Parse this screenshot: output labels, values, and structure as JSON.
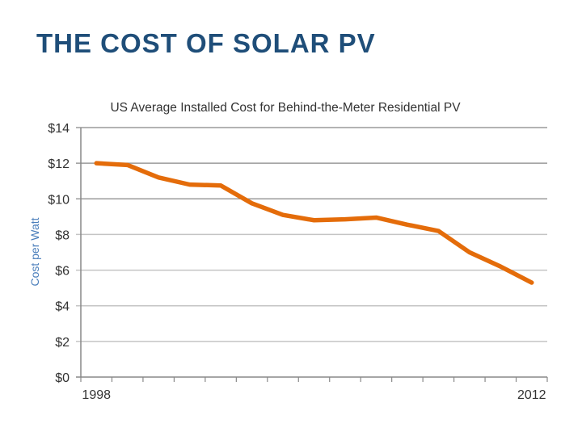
{
  "slide": {
    "title": "THE COST OF SOLAR PV"
  },
  "chart_data": {
    "type": "line",
    "title": "US Average Installed Cost for Behind-the-Meter Residential PV",
    "xlabel": "",
    "ylabel": "Cost per Watt",
    "x": [
      1998,
      1999,
      2000,
      2001,
      2002,
      2003,
      2004,
      2005,
      2006,
      2007,
      2008,
      2009,
      2010,
      2011,
      2012
    ],
    "x_tick_labels": [
      "1998",
      "2012"
    ],
    "y_tick_labels": [
      "$0",
      "$2",
      "$4",
      "$6",
      "$8",
      "$10",
      "$12",
      "$14"
    ],
    "ylim": [
      0,
      14
    ],
    "grid": true,
    "series": [
      {
        "values": [
          12.0,
          11.9,
          11.2,
          10.8,
          10.75,
          9.75,
          9.1,
          8.8,
          8.85,
          8.95,
          8.55,
          8.2,
          7.0,
          6.2,
          5.3
        ],
        "color": "#e46c0a"
      }
    ],
    "colors": {
      "title": "#1f4e79",
      "ylabel": "#4a7ebb",
      "grid": "#b0b0b0"
    }
  }
}
